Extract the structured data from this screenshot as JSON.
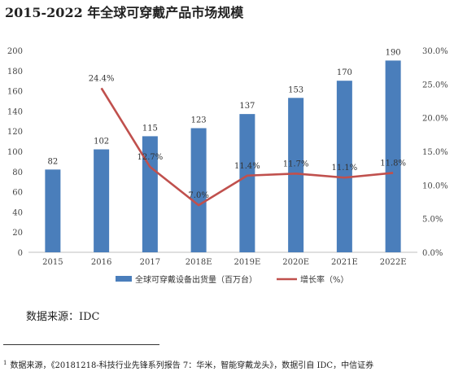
{
  "title": "2015-2022 年全球可穿戴产品市场规模",
  "chart_data": {
    "type": "bar",
    "categories": [
      "2015",
      "2016",
      "2017",
      "2018E",
      "2019E",
      "2020E",
      "2021E",
      "2022E"
    ],
    "series": [
      {
        "name": "全球可穿戴设备出货量（百万台）",
        "type": "bar",
        "color": "#4a7ebb",
        "values": [
          82,
          102,
          115,
          123,
          137,
          153,
          170,
          190
        ],
        "labels": [
          "82",
          "102",
          "115",
          "123",
          "137",
          "153",
          "170",
          "190"
        ]
      },
      {
        "name": "增长率（%）",
        "type": "line",
        "axis": "right",
        "color": "#c0504d",
        "values": [
          null,
          24.4,
          12.7,
          7.0,
          11.4,
          11.7,
          11.1,
          11.8
        ],
        "labels": [
          "",
          "24.4%",
          "12.7%",
          "7.0%",
          "11.4%",
          "11.7%",
          "11.1%",
          "11.8%"
        ]
      }
    ],
    "ylim": [
      0,
      200
    ],
    "yticks": [
      "0",
      "20",
      "40",
      "60",
      "80",
      "100",
      "120",
      "140",
      "160",
      "180",
      "200"
    ],
    "y2lim": [
      0,
      30
    ],
    "y2ticks": [
      "0.0%",
      "5.0%",
      "10.0%",
      "15.0%",
      "20.0%",
      "25.0%",
      "30.0%"
    ],
    "grid": false,
    "legend": "bottom"
  },
  "source": "数据来源：IDC",
  "footnote": {
    "marker": "1",
    "text": "数据来源，《20181218-科技行业先锋系列报告 7：华米，智能穿戴龙头》，数据引自 IDC，中信证券"
  }
}
